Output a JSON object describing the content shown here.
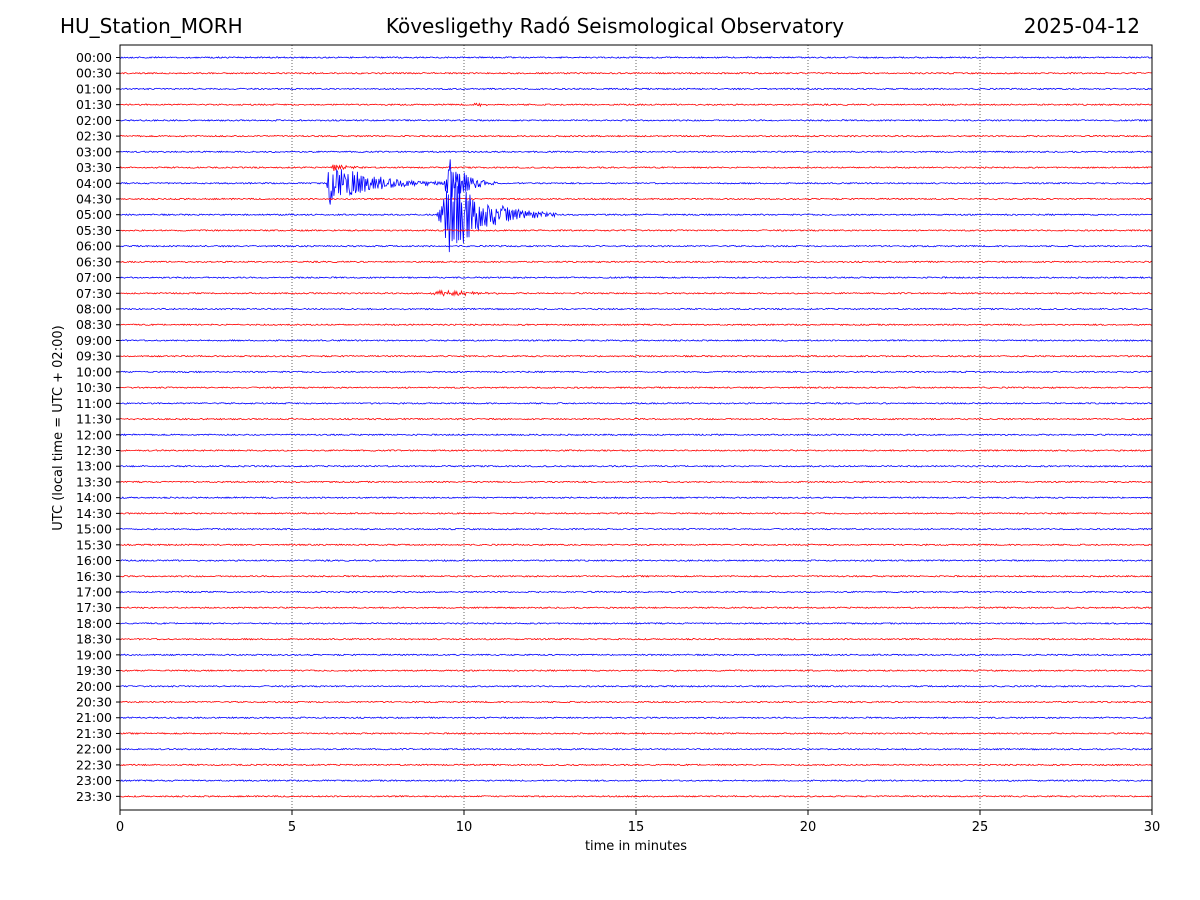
{
  "header": {
    "station": "HU_Station_MORH",
    "observatory": "Kövesligethy Radó Seismological Observatory",
    "date": "2025-04-12"
  },
  "colors": {
    "trace_even": "#0000ff",
    "trace_odd": "#ff0000",
    "grid": "#000000"
  },
  "chart_data": {
    "type": "line",
    "title": "Kövesligethy Radó Seismological Observatory",
    "xlabel": "time in minutes",
    "ylabel": "UTC (local time = UTC + 02:00)",
    "xlim": [
      0,
      30
    ],
    "xticks": [
      0,
      5,
      10,
      15,
      20,
      25,
      30
    ],
    "grid": "vertical dotted at x ticks",
    "rows": [
      "00:00",
      "00:30",
      "01:00",
      "01:30",
      "02:00",
      "02:30",
      "03:00",
      "03:30",
      "04:00",
      "04:30",
      "05:00",
      "05:30",
      "06:00",
      "06:30",
      "07:00",
      "07:30",
      "08:00",
      "08:30",
      "09:00",
      "09:30",
      "10:00",
      "10:30",
      "11:00",
      "11:30",
      "12:00",
      "12:30",
      "13:00",
      "13:30",
      "14:00",
      "14:30",
      "15:00",
      "15:30",
      "16:00",
      "16:30",
      "17:00",
      "17:30",
      "18:00",
      "18:30",
      "19:00",
      "19:30",
      "20:00",
      "20:30",
      "21:00",
      "21:30",
      "22:00",
      "22:30",
      "23:00",
      "23:30"
    ],
    "events": [
      {
        "row": "03:30",
        "start_min": 6.0,
        "peak_min": 6.2,
        "duration_min": 1.4,
        "amplitude": 0.5
      },
      {
        "row": "04:00",
        "start_min": 6.0,
        "peak_min": 6.1,
        "duration_min": 4.5,
        "amplitude": 2.8
      },
      {
        "row": "04:00",
        "start_min": 9.4,
        "peak_min": 9.6,
        "duration_min": 1.6,
        "amplitude": 4.0
      },
      {
        "row": "05:00",
        "start_min": 9.2,
        "peak_min": 9.6,
        "duration_min": 3.5,
        "amplitude": 6.0
      },
      {
        "row": "07:30",
        "start_min": 8.8,
        "peak_min": 9.5,
        "duration_min": 2.2,
        "amplitude": 0.5
      },
      {
        "row": "01:30",
        "start_min": 10.2,
        "peak_min": 10.4,
        "duration_min": 0.6,
        "amplitude": 0.25
      }
    ]
  }
}
